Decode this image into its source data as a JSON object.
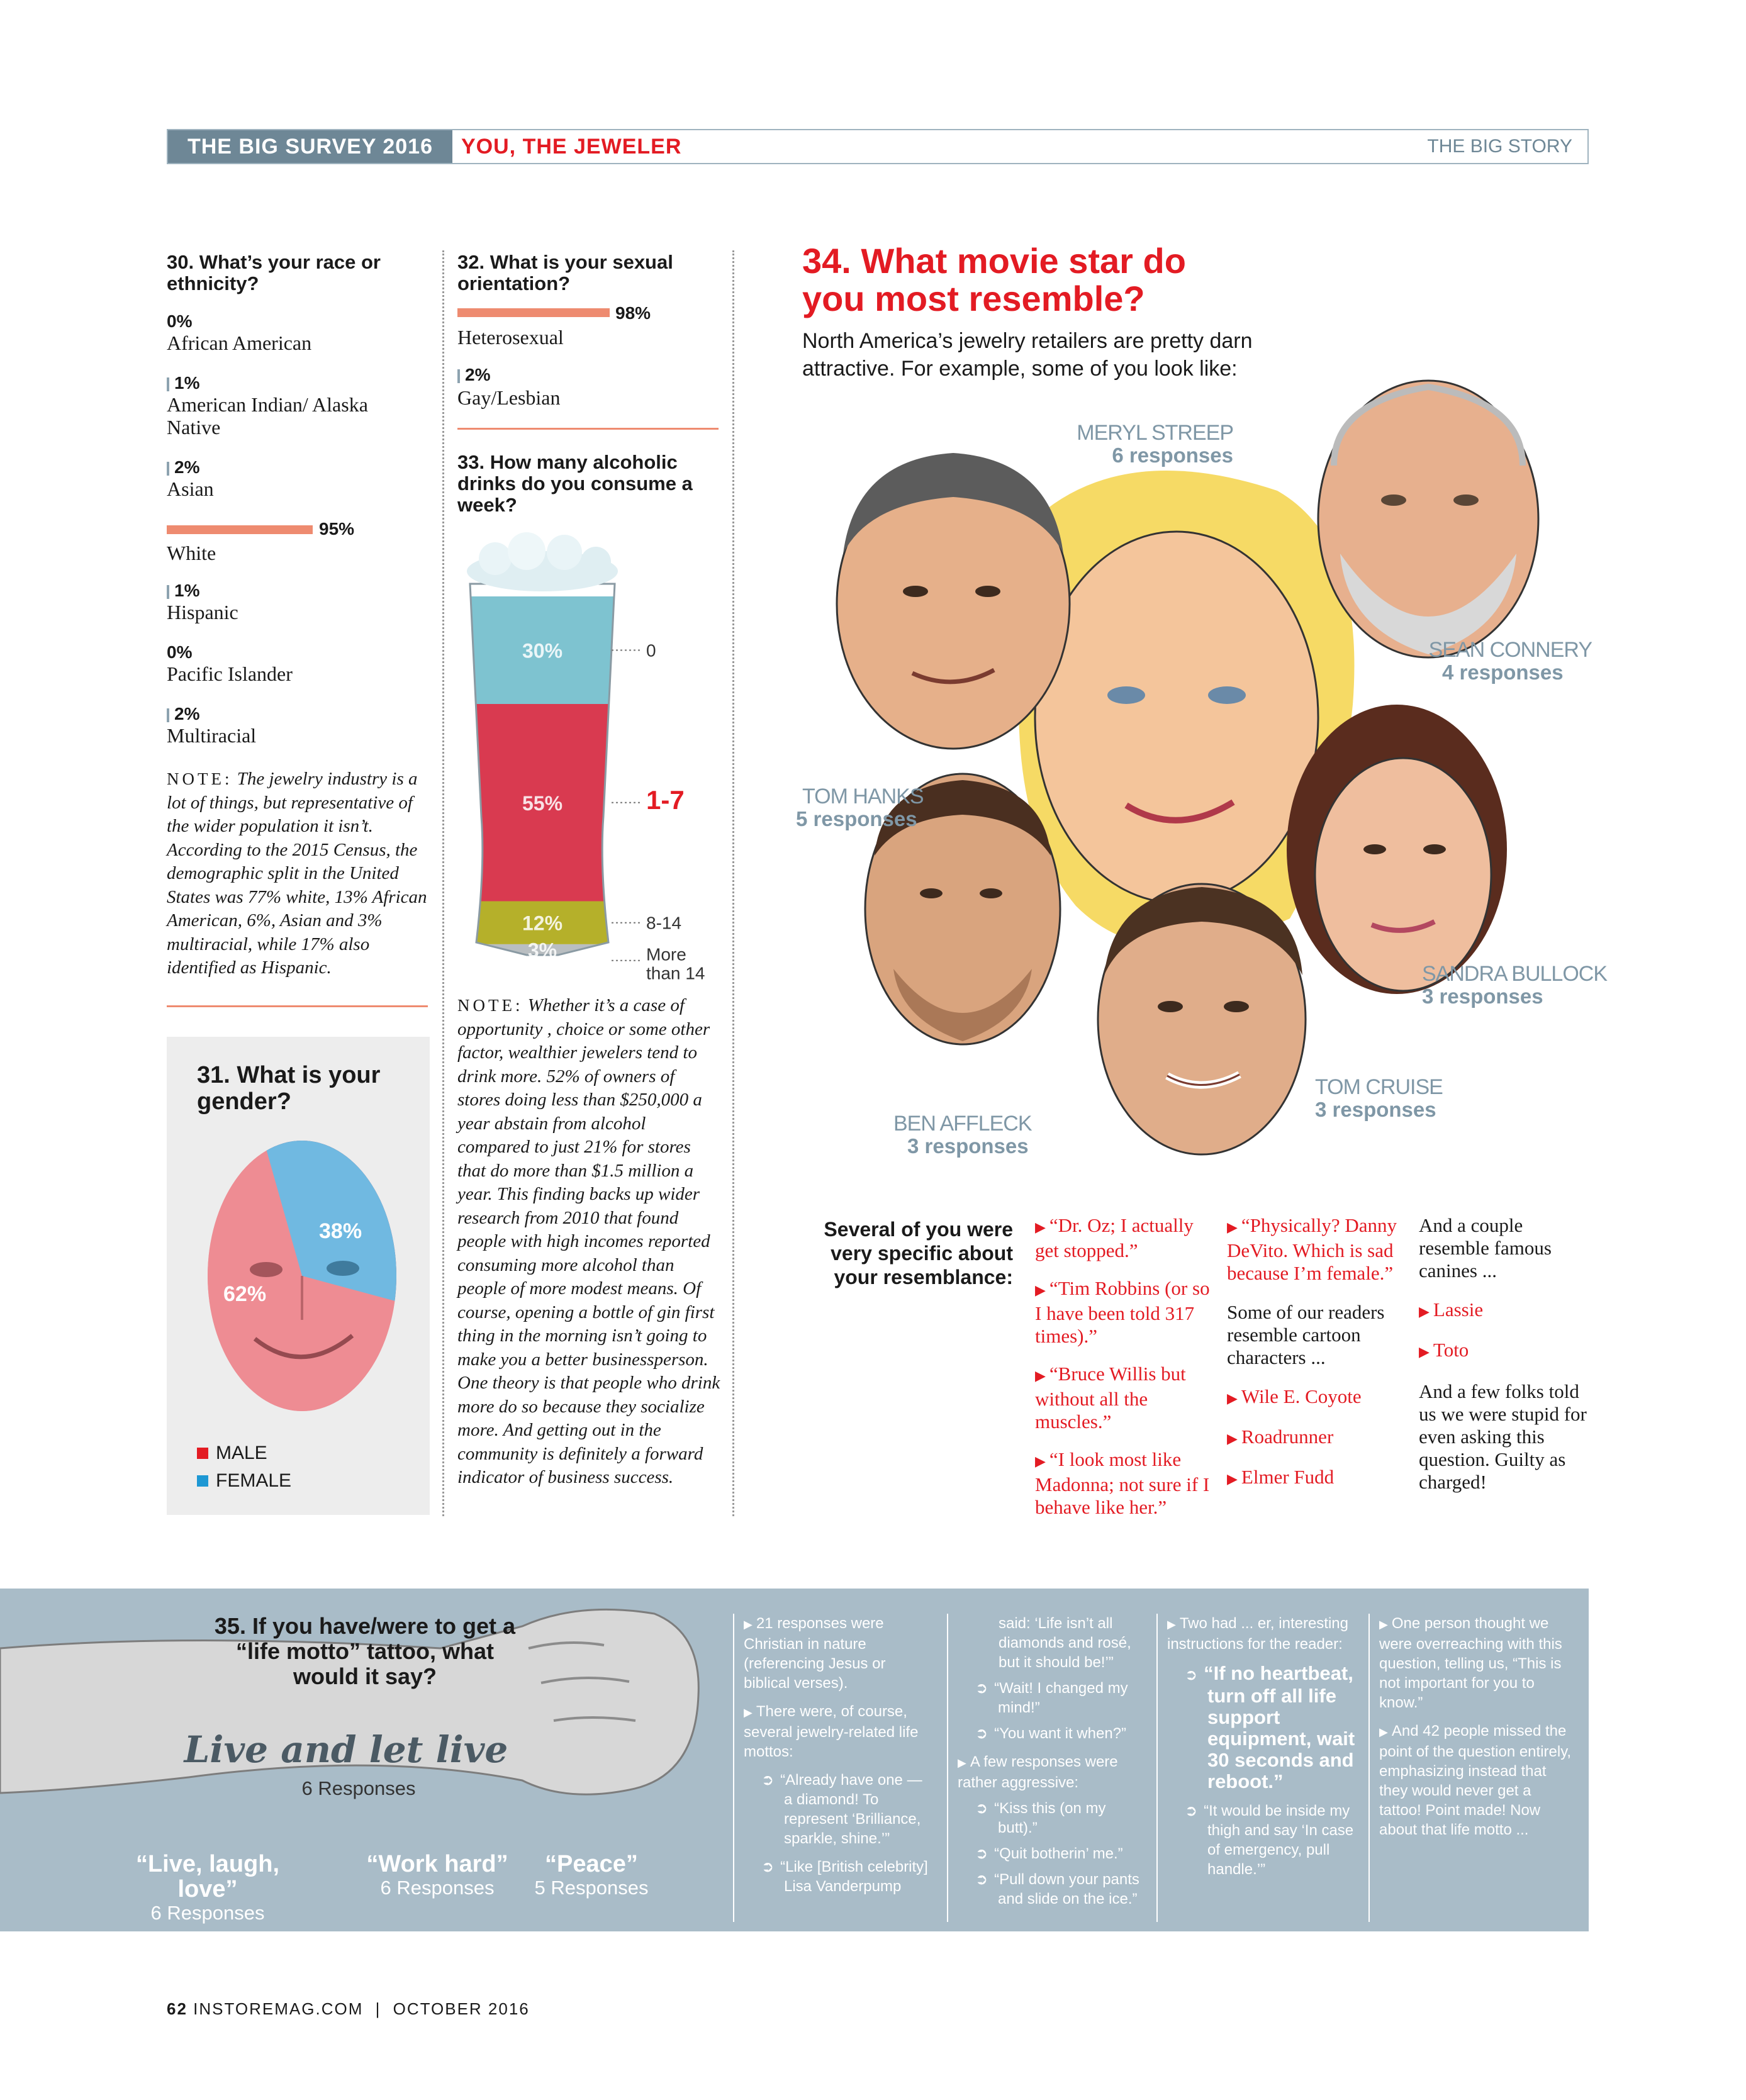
{
  "header": {
    "kicker": "THE BIG SURVEY 2016",
    "section": "YOU, THE JEWELER",
    "department": "THE BIG STORY"
  },
  "q30": {
    "title": "30. What’s your race or ethnicity?",
    "items": [
      {
        "pct": "0%",
        "label": "African American",
        "value": 0
      },
      {
        "pct": "1%",
        "label": "American Indian/ Alaska Native",
        "value": 1
      },
      {
        "pct": "2%",
        "label": "Asian",
        "value": 2
      },
      {
        "pct": "95%",
        "label": "White",
        "value": 95
      },
      {
        "pct": "1%",
        "label": "Hispanic",
        "value": 1
      },
      {
        "pct": "0%",
        "label": "Pacific Islander",
        "value": 0
      },
      {
        "pct": "2%",
        "label": "Multiracial",
        "value": 2
      }
    ],
    "note_key": "NOTE:",
    "note": "The jewelry industry is a lot of things, but representative of the wider population it isn’t. According to the 2015 Census, the demographic split in the United States was 77% white, 13% African American, 6%, Asian and 3% multiracial, while 17% also identified as Hispanic."
  },
  "q31": {
    "title": "31. What is your gender?",
    "male_pct": "62%",
    "female_pct": "38%",
    "legend_male": "MALE",
    "legend_female": "FEMALE",
    "male_color": "#e8606a",
    "female_color": "#3a9fd6"
  },
  "q32": {
    "title": "32. What is your sexual orientation?",
    "items": [
      {
        "pct": "98%",
        "label": "Heterosexual",
        "value": 98
      },
      {
        "pct": "2%",
        "label": "Gay/Lesbian",
        "value": 2
      }
    ]
  },
  "q33": {
    "title": "33. How many alcoholic drinks do you consume a week?",
    "segments": [
      {
        "pct": "30%",
        "label": "0",
        "value": 30,
        "color": "#7ec3d0"
      },
      {
        "pct": "55%",
        "label": "1-7",
        "value": 55,
        "color": "#d93a50"
      },
      {
        "pct": "12%",
        "label": "8-14",
        "value": 12,
        "color": "#b5b02a"
      },
      {
        "pct": "3%",
        "label": "More than 14",
        "value": 3,
        "color": "#b9bec1"
      }
    ],
    "note_key": "NOTE:",
    "note": "Whether it’s a case of opportunity , choice or some other factor, wealthier jewelers tend to drink more. 52% of owners of stores doing less than $250,000 a year abstain from alcohol compared to just 21% for stores that do more than $1.5 million a year. This finding backs up wider research from 2010 that found people with high incomes reported consuming more alcohol than people of more modest means. Of course, opening a bottle of gin first thing in the morning isn’t going to make you a better businessperson. One theory is that people who drink more do so because they socialize more. And getting out in the community is definitely a forward indicator of business success."
  },
  "q34": {
    "title": "34. What movie star do you most resemble?",
    "intro": "North America’s jewelry retailers are pretty darn attractive. For example, some of you look like:",
    "stars": [
      {
        "name": "MERYL STREEP",
        "responses": "6 responses"
      },
      {
        "name": "SEAN CONNERY",
        "responses": "4 responses"
      },
      {
        "name": "TOM HANKS",
        "responses": "5 responses"
      },
      {
        "name": "SANDRA BULLOCK",
        "responses": "3 responses"
      },
      {
        "name": "TOM CRUISE",
        "responses": "3 responses"
      },
      {
        "name": "BEN AFFLECK",
        "responses": "3 responses"
      }
    ],
    "specific_label": "Several of you were very specific about your resemblance:",
    "col1": [
      "“Dr. Oz; I actually get stopped.”",
      "“Tim Robbins (or so I have been told 317 times).”",
      "“Bruce Willis but without all the muscles.”",
      "“I look most like Madonna; not sure if I behave like her.”"
    ],
    "col2_quote": "“Physically? Danny DeVito. Which is sad because I’m female.”",
    "col2_text": "Some of our readers resemble cartoon characters ...",
    "col2_list": [
      "Wile E. Coyote",
      "Roadrunner",
      "Elmer Fudd"
    ],
    "col3_text": "And a couple resemble famous canines ...",
    "col3_list": [
      "Lassie",
      "Toto"
    ],
    "col3_end": "And a few folks told us we were stupid for even asking this question. Guilty as charged!"
  },
  "q35": {
    "title": "35. If you have/were to get a “life motto” tattoo, what would it say?",
    "top": "Live and let live",
    "top_responses": "6 Responses",
    "others": [
      {
        "motto": "“Live, laugh, love”",
        "responses": "6 Responses"
      },
      {
        "motto": "“Work hard”",
        "responses": "6 Responses"
      },
      {
        "motto": "“Peace”",
        "responses": "5 Responses"
      }
    ],
    "col1_p1": "21 responses were Christian in nature (referencing Jesus or biblical verses).",
    "col1_p2": "There were, of course, several jewelry-related life mottos:",
    "col1_q1": "“Already have one — a diamond! To represent ‘Brilliance, sparkle, shine.’”",
    "col1_q2": "“Like [British celebrity] Lisa Vanderpump",
    "col2_cont": "said: ‘Life isn’t all diamonds and rosé, but it should be!’”",
    "col2_q1": "“Wait! I changed my mind!”",
    "col2_q2": "“You want it when?”",
    "col2_p": "A few responses were rather aggressive:",
    "col2_q3": "“Kiss this (on my butt).”",
    "col2_q4": "“Quit botherin’ me.”",
    "col2_q5": "“Pull down your pants and slide on the ice.”",
    "col3_p": "Two had ... er, interesting instructions for the reader:",
    "col3_big": "“If no heartbeat, turn off all life support equipment, wait 30 seconds and reboot.”",
    "col3_q": "“It would be inside my thigh and say ‘In case of emergency, pull handle.’”",
    "col4_p1": "One person thought we were overreaching with this question, telling us, “This is not important for you to know.”",
    "col4_p2": "And 42 people missed the point of the question entirely, emphasizing instead that they would never get a tattoo! Point made! Now about that life motto ..."
  },
  "footer": {
    "page": "62",
    "site": "INSTOREMAG.COM",
    "sep": "|",
    "issue": "OCTOBER 2016"
  }
}
